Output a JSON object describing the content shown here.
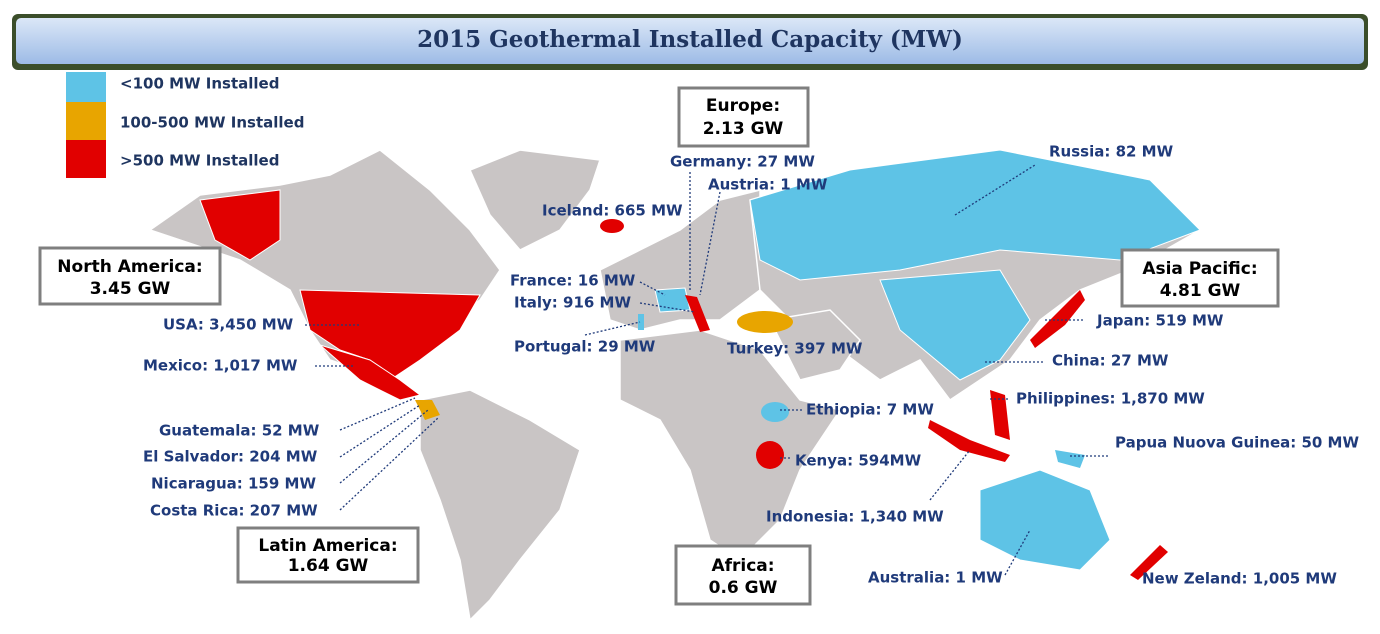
{
  "title": "2015 Geothermal Installed Capacity (MW)",
  "legend": [
    {
      "label": "<100 MW Installed",
      "color": "#5ec3e6"
    },
    {
      "label": "100-500 MW Installed",
      "color": "#e8a500"
    },
    {
      "label": ">500 MW Installed",
      "color": "#e10000"
    }
  ],
  "regions": [
    {
      "name": "Europe:",
      "total": "2.13 GW"
    },
    {
      "name": "North America:",
      "total": "3.45 GW"
    },
    {
      "name": "Asia Pacific:",
      "total": "4.81 GW"
    },
    {
      "name": "Latin America:",
      "total": "1.64 GW"
    },
    {
      "name": "Africa:",
      "total": "0.6 GW"
    }
  ],
  "labels": [
    {
      "text": "Germany: 27 MW"
    },
    {
      "text": "Austria: 1 MW"
    },
    {
      "text": "Iceland: 665 MW"
    },
    {
      "text": "France: 16 MW"
    },
    {
      "text": "Italy: 916 MW"
    },
    {
      "text": "Portugal: 29 MW"
    },
    {
      "text": "Turkey: 397 MW"
    },
    {
      "text": "USA: 3,450 MW"
    },
    {
      "text": "Mexico: 1,017 MW"
    },
    {
      "text": "Guatemala: 52 MW"
    },
    {
      "text": "El Salvador: 204 MW"
    },
    {
      "text": "Nicaragua: 159 MW"
    },
    {
      "text": "Costa Rica: 207 MW"
    },
    {
      "text": "Russia: 82 MW"
    },
    {
      "text": "Japan: 519 MW"
    },
    {
      "text": "China: 27 MW"
    },
    {
      "text": "Philippines: 1,870 MW"
    },
    {
      "text": "Ethiopia: 7 MW"
    },
    {
      "text": "Kenya: 594MW"
    },
    {
      "text": "Papua Nuova Guinea: 50 MW"
    },
    {
      "text": "Indonesia: 1,340 MW"
    },
    {
      "text": "Australia: 1 MW"
    },
    {
      "text": "New Zeland: 1,005 MW"
    }
  ]
}
